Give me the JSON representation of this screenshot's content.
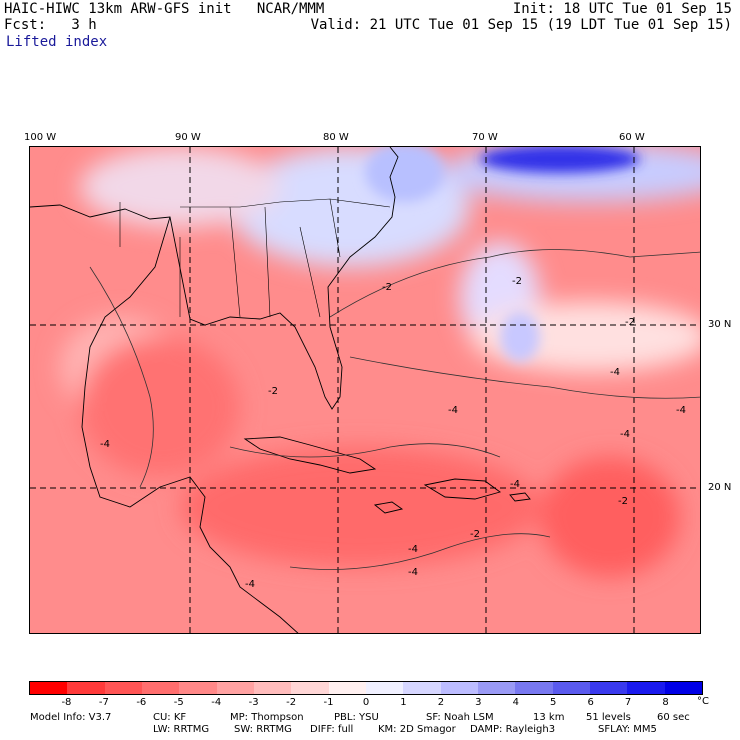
{
  "header": {
    "model_title": "HAIC-HIWC 13km ARW-GFS init   NCAR/MMM",
    "init": "Init: 18 UTC Tue 01 Sep 15",
    "fcst": "Fcst:   3 h",
    "valid": "Valid: 21 UTC Tue 01 Sep 15 (19 LDT Tue 01 Sep 15)",
    "field": "Lifted index"
  },
  "map": {
    "lon_labels": [
      "100 W",
      "90 W",
      "80 W",
      "70 W",
      "60 W"
    ],
    "lat_labels": [
      "30 N",
      "20 N"
    ],
    "contour_labels": [
      "-2",
      "-2",
      "-2",
      "-2",
      "-4",
      "-4",
      "-4",
      "-4",
      "-4",
      "-4",
      "-2",
      "-4",
      "-2",
      "-4",
      "-4"
    ]
  },
  "colorbar": {
    "colors": [
      "#ff0000",
      "#ff3a3a",
      "#ff5555",
      "#ff6e6e",
      "#ff8888",
      "#ffa2a2",
      "#ffbcbc",
      "#ffd6d6",
      "#fff0f0",
      "#f0f0ff",
      "#d6d6ff",
      "#bcbcff",
      "#9a9af5",
      "#7878f0",
      "#5a5aee",
      "#3a3aee",
      "#1a1aee",
      "#0000e6"
    ],
    "ticks": [
      "-8",
      "-7",
      "-6",
      "-5",
      "-4",
      "-3",
      "-2",
      "-1",
      "0",
      "1",
      "2",
      "3",
      "4",
      "5",
      "6",
      "7",
      "8"
    ],
    "unit": "°C"
  },
  "model_info": {
    "line1": [
      "Model Info: V3.7",
      "CU: KF",
      "MP: Thompson",
      "PBL: YSU",
      "SF: Noah LSM",
      "13 km",
      "51 levels",
      "60 sec"
    ],
    "line2": [
      "LW: RRTMG",
      "SW: RRTMG",
      "DIFF: full",
      "KM: 2D Smagor",
      "DAMP: Rayleigh3",
      "SFLAY: MM5"
    ]
  }
}
